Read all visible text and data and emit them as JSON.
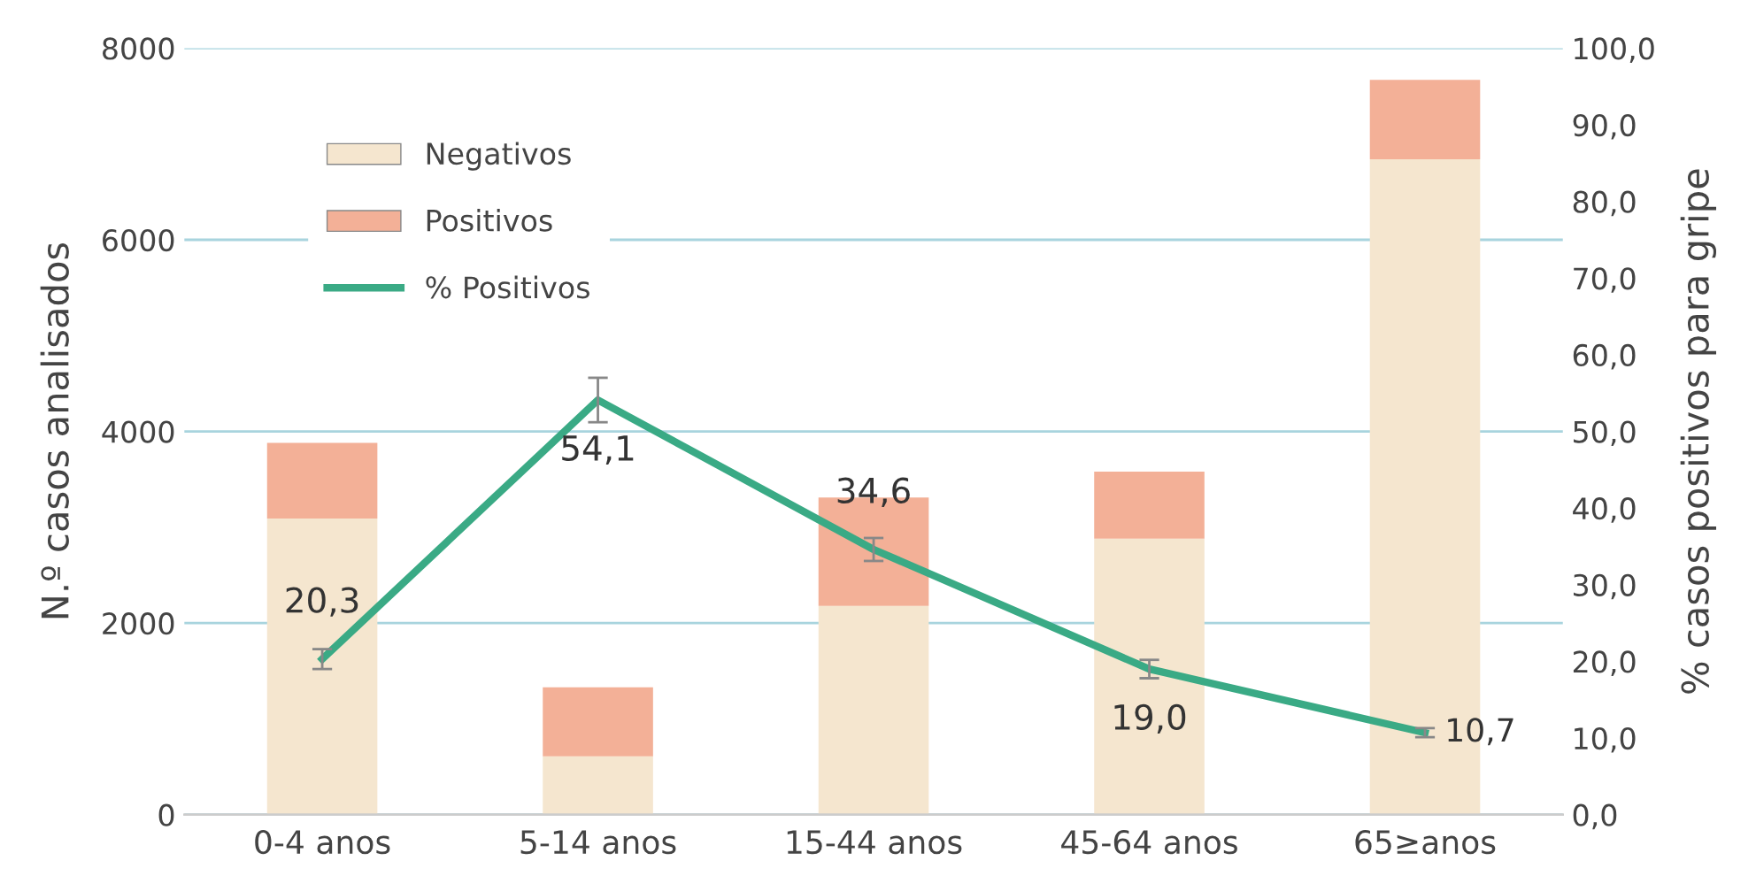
{
  "chart_data": {
    "type": "bar",
    "stacked": true,
    "categories": [
      "0-4 anos",
      "5-14 anos",
      "15-44 anos",
      "45-64 anos",
      "65≥anos"
    ],
    "ylabel": "N.º casos analisados",
    "y2label": "% casos positivos para gripe",
    "ylim": [
      0,
      8000
    ],
    "yticks": [
      0,
      2000,
      4000,
      6000,
      8000
    ],
    "y2lim": [
      0,
      100
    ],
    "y2ticks": [
      {
        "value": 0,
        "label": "0,0"
      },
      {
        "value": 10,
        "label": "10,0"
      },
      {
        "value": 20,
        "label": "20,0"
      },
      {
        "value": 30,
        "label": "30,0"
      },
      {
        "value": 40,
        "label": "40,0"
      },
      {
        "value": 50,
        "label": "50,0"
      },
      {
        "value": 60,
        "label": "60,0"
      },
      {
        "value": 70,
        "label": "70,0"
      },
      {
        "value": 80,
        "label": "80,0"
      },
      {
        "value": 90,
        "label": "90,0"
      },
      {
        "value": 100,
        "label": "100,0"
      }
    ],
    "grid": "y",
    "legend": "top left",
    "series": [
      {
        "name": "Negativos",
        "color": "#f5e6cf",
        "values": [
          3090,
          610,
          2180,
          2880,
          6840
        ]
      },
      {
        "name": "Positivos",
        "color": "#f3b097",
        "values": [
          790,
          720,
          1130,
          700,
          830
        ]
      },
      {
        "name": "% Positivos",
        "type": "line",
        "axis": "y2",
        "color": "#3aaa85",
        "values": [
          20.3,
          54.1,
          34.6,
          19.0,
          10.7
        ],
        "errors": [
          1.3,
          2.9,
          1.5,
          1.2,
          0.6
        ],
        "value_labels": [
          "20,3",
          "54,1",
          "34,6",
          "19,0",
          "10,7"
        ]
      }
    ]
  }
}
